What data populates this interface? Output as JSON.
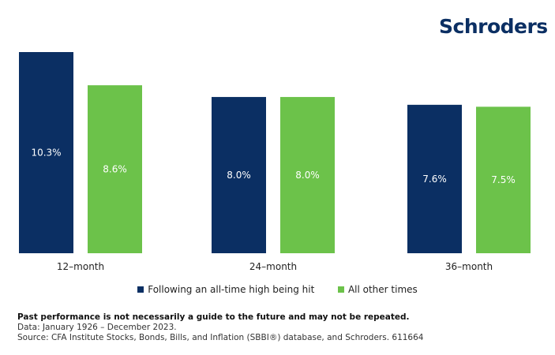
{
  "logo": "Schroders",
  "chart_data": {
    "type": "bar",
    "categories": [
      "12–month",
      "24–month",
      "36–month"
    ],
    "series": [
      {
        "name": "Following an all-time high being hit",
        "values": [
          10.3,
          8.0,
          7.6
        ],
        "labels": [
          "10.3%",
          "8.0%",
          "7.6%"
        ],
        "color": "#0b2f63"
      },
      {
        "name": "All other times",
        "values": [
          8.6,
          8.0,
          7.5
        ],
        "labels": [
          "8.6%",
          "8.0%",
          "7.5%"
        ],
        "color": "#6cc24a"
      }
    ],
    "ylim": [
      0,
      10.3
    ],
    "legend": "bottom",
    "grid": false
  },
  "footer": {
    "disclaimer": "Past performance is not necessarily a guide to the future and may not be repeated.",
    "data_note": "Data: January 1926 – December 2023.",
    "source": "Source: CFA Institute Stocks, Bonds, Bills, and Inflation (SBBI®) database, and Schroders. 611664"
  }
}
